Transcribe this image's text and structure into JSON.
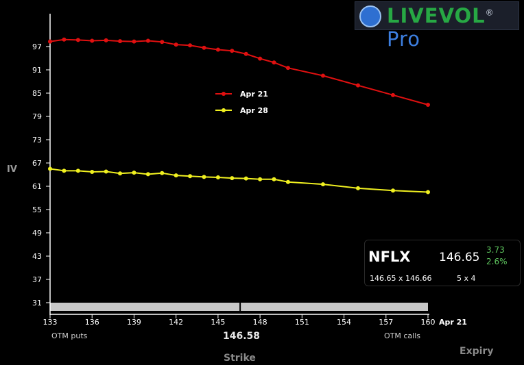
{
  "brand": {
    "name": "LIVEVOL",
    "suffix": "Pro",
    "reg_mark": "®"
  },
  "ticker": {
    "symbol": "NFLX",
    "last": "146.65",
    "change": "3.73",
    "change_pct": "2.6%",
    "bid_ask": "146.65 x 146.66",
    "size": "5 x 4"
  },
  "labels": {
    "y_axis": "IV",
    "x_axis": "Strike",
    "expiry": "Expiry",
    "otm_puts": "OTM puts",
    "otm_calls": "OTM calls",
    "underlying_marker": "146.58",
    "expiry_tick": "Apr 21"
  },
  "colors": {
    "apr21": "#e01010",
    "apr28": "#f0f020",
    "axis": "#ffffff",
    "strip": "#c8c8c8"
  },
  "chart_data": {
    "type": "line",
    "xlabel": "Strike",
    "ylabel": "IV",
    "xlim": [
      133,
      160
    ],
    "ylim": [
      31,
      103
    ],
    "x_ticks": [
      133,
      136,
      139,
      142,
      145,
      148,
      151,
      154,
      157,
      160
    ],
    "y_ticks": [
      31,
      37,
      43,
      49,
      55,
      61,
      67,
      73,
      79,
      85,
      91,
      97
    ],
    "underlying": 146.58,
    "legend": "top-center",
    "series": [
      {
        "name": "Apr 21",
        "color": "#e01010",
        "x": [
          133,
          134,
          135,
          136,
          137,
          138,
          139,
          140,
          141,
          142,
          143,
          144,
          145,
          146,
          147,
          148,
          149,
          150,
          152.5,
          155,
          157.5,
          160
        ],
        "y": [
          98.3,
          98.8,
          98.7,
          98.5,
          98.6,
          98.4,
          98.3,
          98.5,
          98.2,
          97.5,
          97.3,
          96.7,
          96.2,
          95.9,
          95.1,
          93.9,
          92.9,
          91.5,
          89.5,
          87.0,
          84.5,
          82.0
        ]
      },
      {
        "name": "Apr 28",
        "color": "#f0f020",
        "x": [
          133,
          134,
          135,
          136,
          137,
          138,
          139,
          140,
          141,
          142,
          143,
          144,
          145,
          146,
          147,
          148,
          149,
          150,
          152.5,
          155,
          157.5,
          160
        ],
        "y": [
          65.5,
          65.0,
          65.0,
          64.7,
          64.8,
          64.3,
          64.5,
          64.1,
          64.4,
          63.8,
          63.6,
          63.4,
          63.3,
          63.1,
          63.0,
          62.8,
          62.8,
          62.1,
          61.5,
          60.5,
          59.9,
          59.5
        ]
      }
    ]
  }
}
